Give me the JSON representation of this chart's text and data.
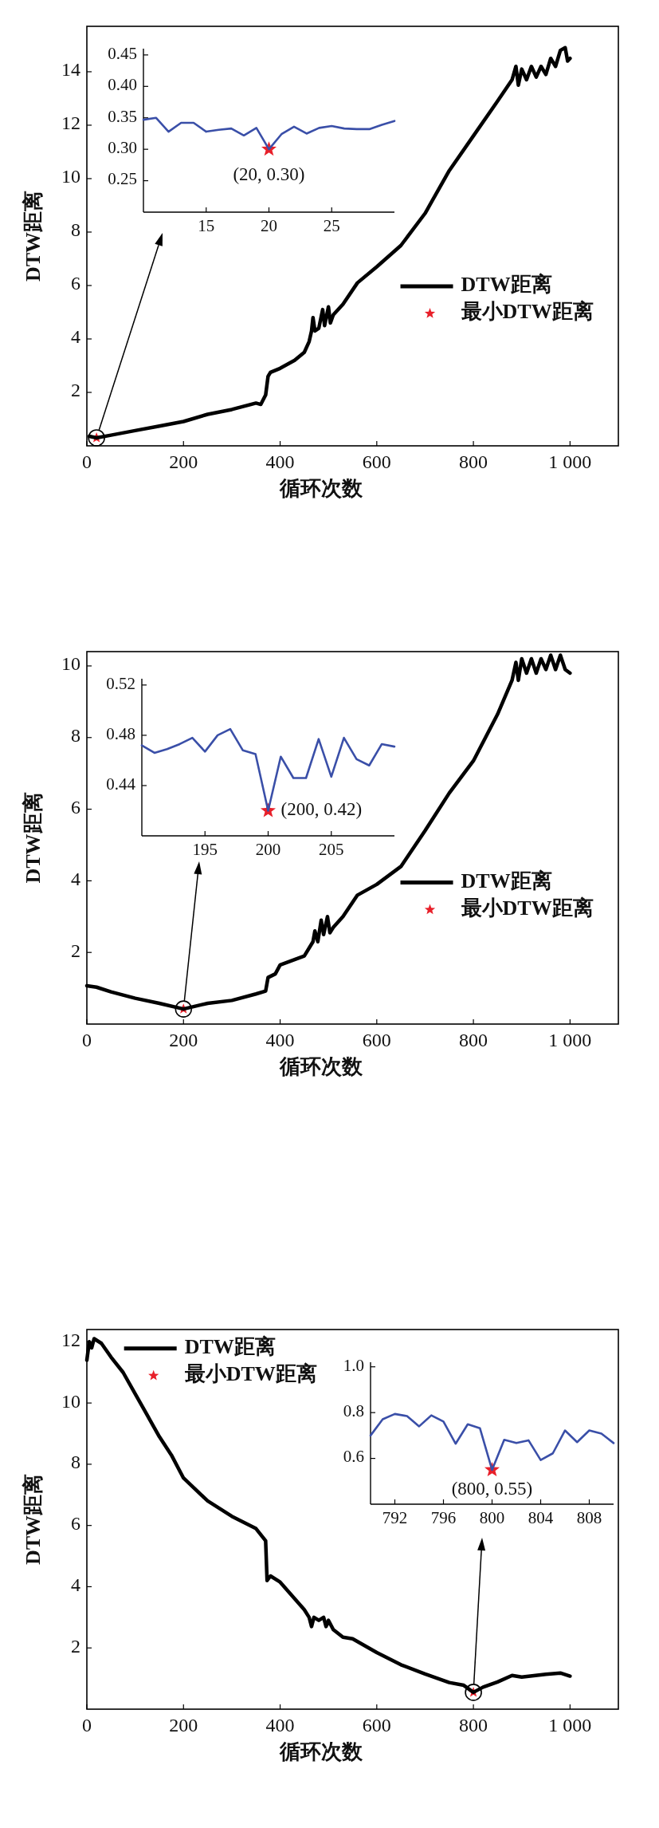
{
  "chart_data": [
    {
      "type": "line",
      "xlabel": "循环次数",
      "ylabel": "DTW距离",
      "xlim": [
        0,
        1100
      ],
      "ylim": [
        0,
        15.7
      ],
      "xticks": [
        0,
        200,
        400,
        600,
        800,
        1000
      ],
      "yticks": [
        2,
        4,
        6,
        8,
        10,
        12,
        14
      ],
      "legend": "right",
      "series": [
        {
          "name": "DTW距离",
          "color": "#000000",
          "x": [
            5,
            20,
            50,
            100,
            150,
            200,
            250,
            300,
            350,
            360,
            370,
            375,
            380,
            400,
            430,
            450,
            460,
            465,
            468,
            472,
            480,
            488,
            492,
            500,
            504,
            510,
            530,
            560,
            600,
            650,
            700,
            750,
            800,
            850,
            880,
            888,
            893,
            900,
            910,
            920,
            930,
            940,
            950,
            960,
            970,
            980,
            990,
            995,
            1000
          ],
          "values": [
            0.36,
            0.3,
            0.4,
            0.57,
            0.74,
            0.91,
            1.18,
            1.36,
            1.6,
            1.55,
            1.9,
            2.6,
            2.75,
            2.9,
            3.2,
            3.5,
            3.9,
            4.3,
            4.8,
            4.3,
            4.4,
            5.1,
            4.5,
            5.2,
            4.6,
            4.9,
            5.3,
            6.1,
            6.7,
            7.5,
            8.7,
            10.3,
            11.6,
            12.9,
            13.7,
            14.2,
            13.5,
            14.1,
            13.7,
            14.2,
            13.8,
            14.2,
            13.9,
            14.5,
            14.2,
            14.8,
            14.9,
            14.4,
            14.5
          ]
        },
        {
          "type": "scatter",
          "name": "最小DTW距离",
          "color": "#e8202a",
          "marker": "star",
          "x": [
            20
          ],
          "values": [
            0.3
          ]
        }
      ]
    },
    {
      "type": "line",
      "xlim": [
        10,
        30
      ],
      "ylim": [
        0.2,
        0.46
      ],
      "xticks": [
        15,
        20,
        25
      ],
      "yticks": [
        0.25,
        {
          "value": 0.3,
          "label": "0.30"
        },
        0.35,
        {
          "value": 0.4,
          "label": "0.40"
        },
        0.45
      ],
      "annotations": [
        {
          "text": "(20, 0.30)",
          "x": 20,
          "y": 0.3
        }
      ],
      "series": [
        {
          "color": "#3a4fa8",
          "x": [
            10,
            11,
            12,
            13,
            14,
            15,
            16,
            17,
            18,
            19,
            20,
            21,
            22,
            23,
            24,
            25,
            26,
            27,
            28,
            29,
            30
          ],
          "values": [
            0.347,
            0.35,
            0.328,
            0.342,
            0.342,
            0.328,
            0.331,
            0.333,
            0.322,
            0.334,
            0.3,
            0.324,
            0.336,
            0.325,
            0.334,
            0.337,
            0.333,
            0.332,
            0.332,
            0.339,
            0.345
          ]
        },
        {
          "type": "scatter",
          "color": "#e8202a",
          "marker": "star",
          "x": [
            20
          ],
          "values": [
            0.3
          ]
        }
      ]
    },
    {
      "type": "line",
      "xlabel": "循环次数",
      "ylabel": "DTW距离",
      "xlim": [
        0,
        1100
      ],
      "ylim": [
        0,
        10.4
      ],
      "xticks": [
        0,
        200,
        400,
        600,
        800,
        1000
      ],
      "yticks": [
        2,
        4,
        6,
        8,
        10
      ],
      "legend": "right",
      "series": [
        {
          "name": "DTW距离",
          "color": "#000000",
          "x": [
            0,
            20,
            50,
            100,
            150,
            200,
            250,
            300,
            350,
            370,
            375,
            390,
            400,
            420,
            450,
            468,
            472,
            478,
            485,
            490,
            498,
            503,
            510,
            530,
            560,
            600,
            650,
            700,
            750,
            800,
            850,
            880,
            888,
            893,
            900,
            910,
            920,
            930,
            940,
            950,
            960,
            970,
            980,
            990,
            1000
          ],
          "values": [
            1.07,
            1.03,
            0.9,
            0.72,
            0.58,
            0.42,
            0.58,
            0.66,
            0.84,
            0.92,
            1.3,
            1.4,
            1.65,
            1.75,
            1.9,
            2.3,
            2.6,
            2.3,
            2.9,
            2.5,
            3.0,
            2.55,
            2.7,
            3.0,
            3.6,
            3.9,
            4.4,
            5.4,
            6.45,
            7.35,
            8.65,
            9.6,
            10.1,
            9.6,
            10.2,
            9.8,
            10.2,
            9.8,
            10.2,
            9.9,
            10.3,
            9.9,
            10.3,
            9.9,
            9.8
          ]
        },
        {
          "type": "scatter",
          "name": "最小DTW距离",
          "color": "#e8202a",
          "marker": "star",
          "x": [
            200
          ],
          "values": [
            0.42
          ]
        }
      ]
    },
    {
      "type": "line",
      "xlim": [
        190,
        210
      ],
      "ylim": [
        0.4,
        0.525
      ],
      "xticks": [
        195,
        200,
        205
      ],
      "yticks": [
        0.44,
        0.48,
        0.52
      ],
      "annotations": [
        {
          "text": "(200, 0.42)",
          "x": 200,
          "y": 0.42
        }
      ],
      "series": [
        {
          "color": "#3a4fa8",
          "x": [
            190,
            191,
            192,
            193,
            194,
            195,
            196,
            197,
            198,
            199,
            200,
            201,
            202,
            203,
            204,
            205,
            206,
            207,
            208,
            209,
            210
          ],
          "values": [
            0.472,
            0.466,
            0.469,
            0.473,
            0.478,
            0.467,
            0.48,
            0.485,
            0.468,
            0.465,
            0.42,
            0.463,
            0.446,
            0.446,
            0.477,
            0.447,
            0.478,
            0.461,
            0.456,
            0.473,
            0.471
          ]
        },
        {
          "type": "scatter",
          "color": "#e8202a",
          "marker": "star",
          "x": [
            200
          ],
          "values": [
            0.42
          ]
        }
      ]
    },
    {
      "type": "line",
      "xlabel": "循环次数",
      "ylabel": "DTW距离",
      "xlim": [
        0,
        1100
      ],
      "ylim": [
        0,
        12.4
      ],
      "xticks": [
        0,
        200,
        400,
        600,
        800,
        1000
      ],
      "yticks": [
        2,
        4,
        6,
        8,
        10,
        12
      ],
      "legend": "top left",
      "series": [
        {
          "name": "DTW距离",
          "color": "#000000",
          "x": [
            0,
            5,
            10,
            15,
            30,
            50,
            75,
            100,
            125,
            150,
            175,
            200,
            250,
            300,
            350,
            370,
            373,
            380,
            400,
            450,
            460,
            465,
            470,
            480,
            490,
            495,
            500,
            510,
            530,
            550,
            600,
            650,
            700,
            750,
            780,
            800,
            820,
            850,
            880,
            900,
            950,
            980,
            1000
          ],
          "values": [
            11.4,
            12.0,
            11.8,
            12.1,
            11.95,
            11.5,
            11.0,
            10.3,
            9.6,
            8.9,
            8.3,
            7.55,
            6.8,
            6.3,
            5.9,
            5.5,
            4.2,
            4.35,
            4.15,
            3.25,
            3.0,
            2.7,
            3.0,
            2.9,
            3.0,
            2.7,
            2.9,
            2.6,
            2.35,
            2.3,
            1.85,
            1.45,
            1.15,
            0.87,
            0.78,
            0.55,
            0.72,
            0.89,
            1.1,
            1.05,
            1.14,
            1.18,
            1.08
          ]
        },
        {
          "type": "scatter",
          "name": "最小DTW距离",
          "color": "#e8202a",
          "marker": "star",
          "x": [
            800
          ],
          "values": [
            0.55
          ]
        }
      ]
    },
    {
      "type": "line",
      "xlim": [
        790,
        810
      ],
      "ylim": [
        0.4,
        1.02
      ],
      "xticks": [
        792,
        796,
        800,
        804,
        808
      ],
      "yticks": [
        0.6,
        0.8,
        {
          "value": 1,
          "label": "1.0"
        }
      ],
      "annotations": [
        {
          "text": "(800, 0.55)",
          "x": 800,
          "y": 0.55
        }
      ],
      "series": [
        {
          "color": "#3a4fa8",
          "x": [
            790,
            791,
            792,
            793,
            794,
            795,
            796,
            797,
            798,
            799,
            800,
            801,
            802,
            803,
            804,
            805,
            806,
            807,
            808,
            809,
            810
          ],
          "values": [
            0.7,
            0.771,
            0.794,
            0.785,
            0.74,
            0.788,
            0.761,
            0.664,
            0.749,
            0.732,
            0.55,
            0.681,
            0.667,
            0.679,
            0.593,
            0.622,
            0.722,
            0.671,
            0.722,
            0.708,
            0.667
          ]
        },
        {
          "type": "scatter",
          "color": "#e8202a",
          "marker": "star",
          "x": [
            800
          ],
          "values": [
            0.55
          ]
        }
      ]
    }
  ]
}
